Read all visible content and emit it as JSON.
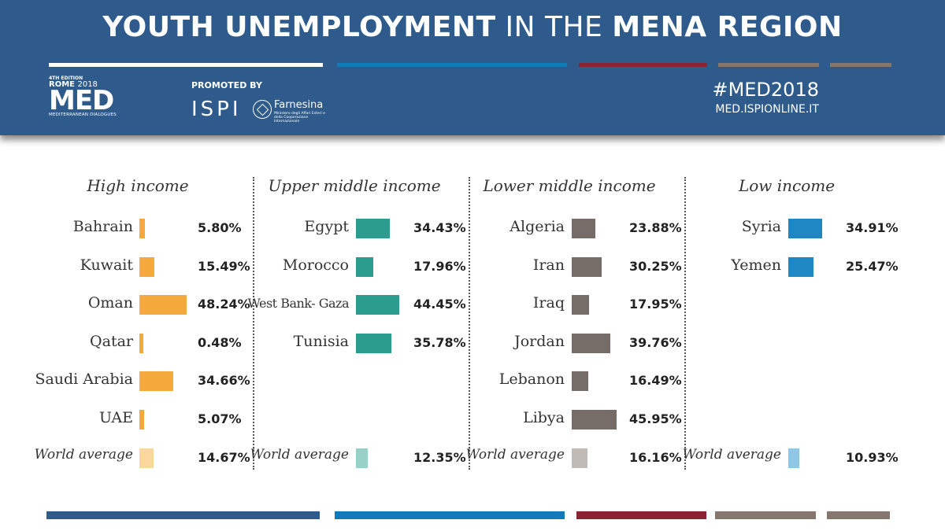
{
  "header": {
    "title_parts": [
      {
        "text": "YOUTH UNEMPLOYMENT",
        "weight": "bold"
      },
      {
        "text": " IN THE ",
        "weight": "normal"
      },
      {
        "text": "MENA REGION",
        "weight": "bold"
      }
    ],
    "logo": {
      "edition": "4TH EDITION",
      "rome": "ROME",
      "year": "2018",
      "med": "MED",
      "subtitle": "MEDITERRANEAN DIALOGUES"
    },
    "promoted_by": "PROMOTED BY",
    "ispi": "ISPI",
    "farnesina": {
      "name": "Farnesina",
      "subtitle": "Ministero degli Affari Esteri e della Cooperazione Internazionale"
    },
    "hashtag": "#MED2018",
    "website": "MED.ISPIONLINE.IT"
  },
  "colors": {
    "header_bg": "#2e5b8c",
    "stripes": [
      "#ffffff",
      "#1479b8",
      "#8c2332",
      "#86776e",
      "#86776e"
    ],
    "bottom_stripes": [
      "#2e5b8c",
      "#1479b8",
      "#8c2332",
      "#86776e",
      "#86776e"
    ]
  },
  "chart_data": {
    "type": "bar",
    "orientation": "horizontal",
    "unit": "%",
    "value_range": [
      0,
      50
    ],
    "groups": [
      {
        "name": "High income",
        "color": "#f4a93c",
        "world_color": "#fad79c",
        "categories": [
          "Bahrain",
          "Kuwait",
          "Oman",
          "Qatar",
          "Saudi Arabia",
          "UAE"
        ],
        "values": [
          5.8,
          15.49,
          48.24,
          0.48,
          34.66,
          5.07
        ],
        "labels": [
          "5.80%",
          "15.49%",
          "48.24%",
          "0.48%",
          "34.66%",
          "5.07%"
        ],
        "world_average": {
          "label": "World average",
          "value": 14.67,
          "text": "14.67%"
        }
      },
      {
        "name": "Upper middle income",
        "color": "#2a9d8f",
        "world_color": "#97d1c8",
        "categories": [
          "Egypt",
          "Morocco",
          "West Bank- Gaza",
          "Tunisia"
        ],
        "values": [
          34.43,
          17.96,
          44.45,
          35.78
        ],
        "labels": [
          "34.43%",
          "17.96%",
          "44.45%",
          "35.78%"
        ],
        "world_average": {
          "label": "World average",
          "value": 12.35,
          "text": "12.35%"
        }
      },
      {
        "name": "Lower middle income",
        "color": "#766d69",
        "world_color": "#c1bbb8",
        "categories": [
          "Algeria",
          "Iran",
          "Iraq",
          "Jordan",
          "Lebanon",
          "Libya"
        ],
        "values": [
          23.88,
          30.25,
          17.95,
          39.76,
          16.49,
          45.95
        ],
        "labels": [
          "23.88%",
          "30.25%",
          "17.95%",
          "39.76%",
          "16.49%",
          "45.95%"
        ],
        "world_average": {
          "label": "World average",
          "value": 16.16,
          "text": "16.16%"
        }
      },
      {
        "name": "Low income",
        "color": "#1f87c4",
        "world_color": "#8ec8e6",
        "categories": [
          "Syria",
          "Yemen"
        ],
        "values": [
          34.91,
          25.47
        ],
        "labels": [
          "34.91%",
          "25.47%"
        ],
        "world_average": {
          "label": "World average",
          "value": 10.93,
          "text": "10.93%"
        }
      }
    ]
  }
}
